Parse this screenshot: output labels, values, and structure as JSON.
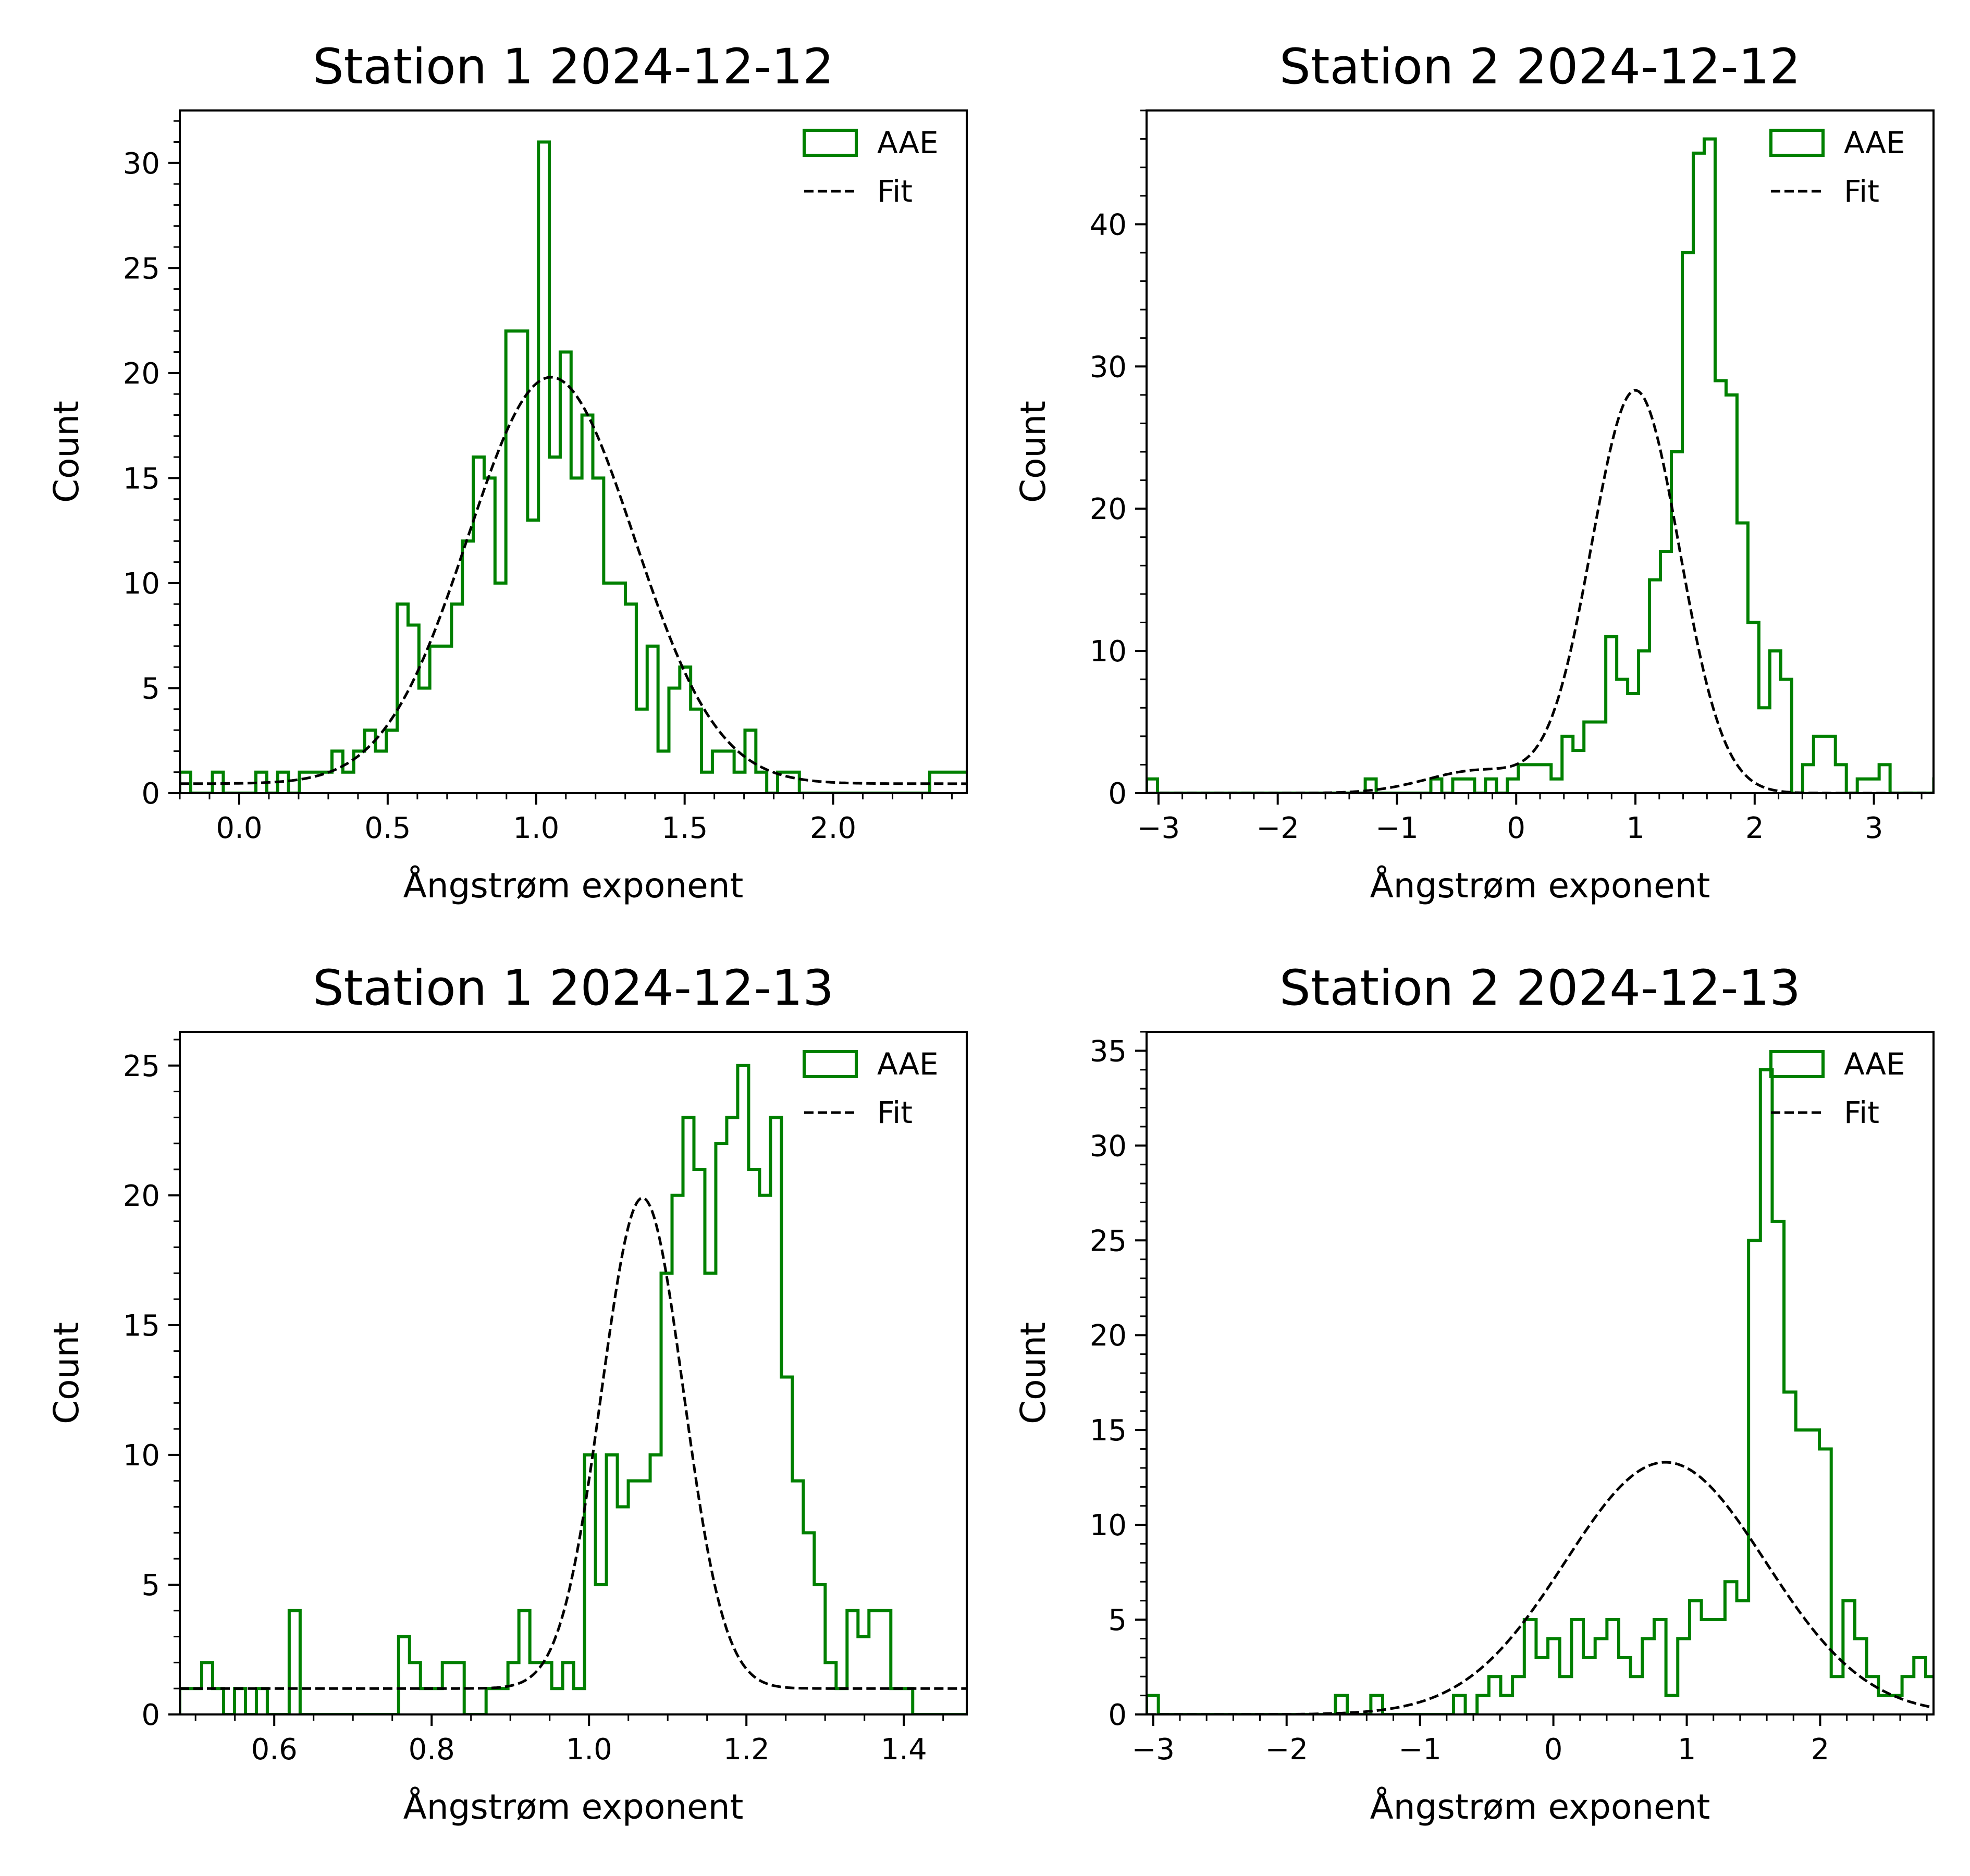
{
  "colors": {
    "hist": "#008000",
    "fit": "#000000",
    "axes": "#000000",
    "background": "#ffffff"
  },
  "chart_data": [
    {
      "type": "histogram",
      "title": "Station 1 2024-12-12",
      "xlabel": "Ångstrøm exponent",
      "ylabel": "Count",
      "xlim": [
        -0.2,
        2.45
      ],
      "ylim": [
        0,
        32.5
      ],
      "xticks": [
        0.0,
        0.5,
        1.0,
        1.5,
        2.0
      ],
      "xtick_labels": [
        "0.0",
        "0.5",
        "1.0",
        "1.5",
        "2.0"
      ],
      "xminor": 0.1,
      "yticks": [
        0,
        5,
        10,
        15,
        20,
        25,
        30
      ],
      "ytick_labels": [
        "0",
        "5",
        "10",
        "15",
        "20",
        "25",
        "30"
      ],
      "yminor": 1,
      "legend": {
        "position": "top-right",
        "entries": [
          "AAE",
          "Fit"
        ]
      },
      "hist": {
        "name": "AAE",
        "bin_start": -0.2,
        "bin_width": 0.0366,
        "counts": [
          1,
          0,
          0,
          1,
          0,
          0,
          0,
          1,
          0,
          1,
          0,
          1,
          1,
          1,
          2,
          1,
          2,
          3,
          2,
          3,
          9,
          8,
          5,
          7,
          7,
          9,
          12,
          16,
          15,
          10,
          22,
          22,
          13,
          31,
          16,
          21,
          15,
          18,
          15,
          10,
          10,
          9,
          4,
          7,
          2,
          5,
          6,
          4,
          1,
          2,
          2,
          1,
          3,
          1,
          0,
          1,
          1,
          0,
          0,
          0,
          0,
          0,
          0,
          0,
          0,
          0,
          0,
          0,
          0,
          1,
          1,
          1,
          1
        ]
      },
      "fit": {
        "name": "Fit",
        "amplitude": 19.35,
        "mean": 1.05,
        "sigma": 0.28,
        "offset": 0.45
      }
    },
    {
      "type": "histogram",
      "title": "Station 2 2024-12-12",
      "xlabel": "Ångstrøm exponent",
      "ylabel": "Count",
      "xlim": [
        -3.1,
        3.5
      ],
      "ylim": [
        0,
        48
      ],
      "xticks": [
        -3,
        -2,
        -1,
        0,
        1,
        2,
        3
      ],
      "xtick_labels": [
        "−3",
        "−2",
        "−1",
        "0",
        "1",
        "2",
        "3"
      ],
      "xminor": 0.2,
      "yticks": [
        0,
        10,
        20,
        30,
        40
      ],
      "ytick_labels": [
        "0",
        "10",
        "20",
        "30",
        "40"
      ],
      "yminor": 2,
      "legend": {
        "position": "top-right",
        "entries": [
          "AAE",
          "Fit"
        ]
      },
      "hist": {
        "name": "AAE",
        "bin_start": -3.1,
        "bin_width": 0.0917,
        "counts": [
          1,
          0,
          0,
          0,
          0,
          0,
          0,
          0,
          0,
          0,
          0,
          0,
          0,
          0,
          0,
          0,
          0,
          0,
          0,
          0,
          1,
          0,
          0,
          0,
          0,
          0,
          1,
          0,
          1,
          1,
          0,
          1,
          0,
          1,
          2,
          2,
          2,
          1,
          4,
          3,
          5,
          5,
          11,
          8,
          7,
          10,
          15,
          17,
          24,
          38,
          45,
          46,
          29,
          28,
          19,
          12,
          6,
          10,
          8,
          0,
          2,
          4,
          4,
          2,
          0,
          1,
          1,
          2,
          0,
          0,
          0,
          0,
          1
        ]
      },
      "fit": {
        "name": "Fit",
        "amplitude": 28.3,
        "mean": 1.0,
        "sigma": 0.37,
        "offset": 0,
        "shoulder": {
          "amplitude": 1.6,
          "mean": -0.3,
          "sigma": 0.45
        }
      }
    },
    {
      "type": "histogram",
      "title": "Station 1 2024-12-13",
      "xlabel": "Ångstrøm exponent",
      "ylabel": "Count",
      "xlim": [
        0.48,
        1.48
      ],
      "ylim": [
        0,
        26.3
      ],
      "xticks": [
        0.6,
        0.8,
        1.0,
        1.2,
        1.4
      ],
      "xtick_labels": [
        "0.6",
        "0.8",
        "1.0",
        "1.2",
        "1.4"
      ],
      "xminor": 0.05,
      "yticks": [
        0,
        5,
        10,
        15,
        20,
        25
      ],
      "ytick_labels": [
        "0",
        "5",
        "10",
        "15",
        "20",
        "25"
      ],
      "yminor": 1,
      "legend": {
        "position": "top-right",
        "entries": [
          "AAE",
          "Fit"
        ]
      },
      "hist": {
        "name": "AAE",
        "bin_start": 0.48,
        "bin_width": 0.0139,
        "counts": [
          1,
          1,
          2,
          1,
          0,
          1,
          0,
          1,
          0,
          0,
          4,
          0,
          0,
          0,
          0,
          0,
          0,
          0,
          0,
          0,
          3,
          2,
          1,
          1,
          2,
          2,
          0,
          0,
          1,
          1,
          2,
          4,
          2,
          2,
          1,
          2,
          1,
          10,
          5,
          10,
          8,
          9,
          9,
          10,
          17,
          20,
          23,
          21,
          17,
          22,
          23,
          25,
          21,
          20,
          23,
          13,
          9,
          7,
          5,
          2,
          1,
          4,
          3,
          4,
          4,
          1,
          1,
          0,
          0,
          0,
          0,
          0,
          0
        ]
      },
      "fit": {
        "name": "Fit",
        "amplitude": 18.9,
        "mean": 1.068,
        "sigma": 0.052,
        "offset": 1.0
      }
    },
    {
      "type": "histogram",
      "title": "Station 2 2024-12-13",
      "xlabel": "Ångstrøm exponent",
      "ylabel": "Count",
      "xlim": [
        -3.05,
        2.85
      ],
      "ylim": [
        0,
        36
      ],
      "xticks": [
        -3,
        -2,
        -1,
        0,
        1,
        2
      ],
      "xtick_labels": [
        "−3",
        "−2",
        "−1",
        "0",
        "1",
        "2"
      ],
      "xminor": 0.2,
      "yticks": [
        0,
        5,
        10,
        15,
        20,
        25,
        30,
        35
      ],
      "ytick_labels": [
        "0",
        "5",
        "10",
        "15",
        "20",
        "25",
        "30",
        "35"
      ],
      "yminor": 1,
      "legend": {
        "position": "top-right",
        "entries": [
          "AAE",
          "Fit"
        ]
      },
      "hist": {
        "name": "AAE",
        "bin_start": -3.05,
        "bin_width": 0.0885,
        "counts": [
          1,
          0,
          0,
          0,
          0,
          0,
          0,
          0,
          0,
          0,
          0,
          0,
          0,
          0,
          0,
          0,
          1,
          0,
          0,
          1,
          0,
          0,
          0,
          0,
          0,
          0,
          1,
          0,
          1,
          2,
          1,
          2,
          5,
          3,
          4,
          2,
          5,
          3,
          4,
          5,
          3,
          2,
          4,
          5,
          1,
          4,
          6,
          5,
          5,
          7,
          6,
          25,
          34,
          26,
          17,
          15,
          15,
          14,
          2,
          6,
          4,
          2,
          1,
          1,
          2,
          3,
          2,
          1,
          2,
          1,
          1,
          1,
          1,
          1
        ]
      },
      "fit": {
        "name": "Fit",
        "amplitude": 13.3,
        "mean": 0.84,
        "sigma": 0.75,
        "offset": 0
      }
    }
  ]
}
